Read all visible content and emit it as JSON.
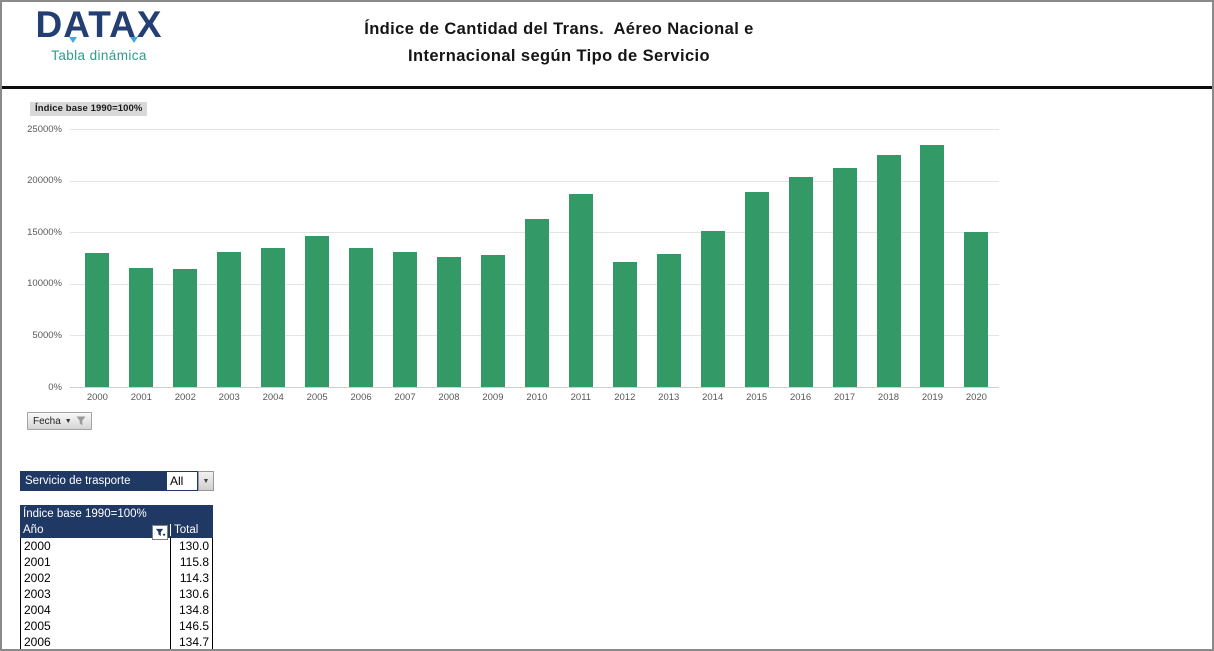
{
  "header": {
    "logo": "DATAX",
    "logo_tagline": "Tabla dinámica",
    "title_line1": "Índice de Cantidad del Trans.  Aéreo Nacional e",
    "title_line2": "Internacional según Tipo de Servicio"
  },
  "chart": {
    "badge_label": "Índice base 1990=100%",
    "field_button_label": "Fecha",
    "bar_color": "#339966"
  },
  "chart_data": {
    "type": "bar",
    "title": "Índice de Cantidad del Trans. Aéreo Nacional e Internacional según Tipo de Servicio",
    "categories": [
      "2000",
      "2001",
      "2002",
      "2003",
      "2004",
      "2005",
      "2006",
      "2007",
      "2008",
      "2009",
      "2010",
      "2011",
      "2012",
      "2013",
      "2014",
      "2015",
      "2016",
      "2017",
      "2018",
      "2019",
      "2020"
    ],
    "values": [
      13000,
      11580,
      11430,
      13060,
      13480,
      14650,
      13470,
      13090,
      12600,
      12820,
      16240,
      18730,
      12100,
      12920,
      15140,
      18870,
      20350,
      21200,
      22490,
      23490,
      14990
    ],
    "unit": "%",
    "xlabel": "",
    "ylabel": "",
    "ylim": [
      0,
      25000
    ],
    "y_ticks": [
      "25000%",
      "20000%",
      "15000%",
      "10000%",
      "5000%",
      "0%"
    ],
    "grid": true,
    "legend": false
  },
  "filter": {
    "label": "Servicio de trasporte",
    "value": "All"
  },
  "table": {
    "title": "Índice base 1990=100%",
    "columns": [
      "Año",
      "Total"
    ],
    "rows": [
      [
        "2000",
        "130.0"
      ],
      [
        "2001",
        "115.8"
      ],
      [
        "2002",
        "114.3"
      ],
      [
        "2003",
        "130.6"
      ],
      [
        "2004",
        "134.8"
      ],
      [
        "2005",
        "146.5"
      ],
      [
        "2006",
        "134.7"
      ]
    ]
  },
  "colors": {
    "navy": "#1F3864",
    "teal": "#2E9C8C",
    "green": "#339966",
    "axis_text": "#595959",
    "accent_blue": "#41A9D9"
  }
}
